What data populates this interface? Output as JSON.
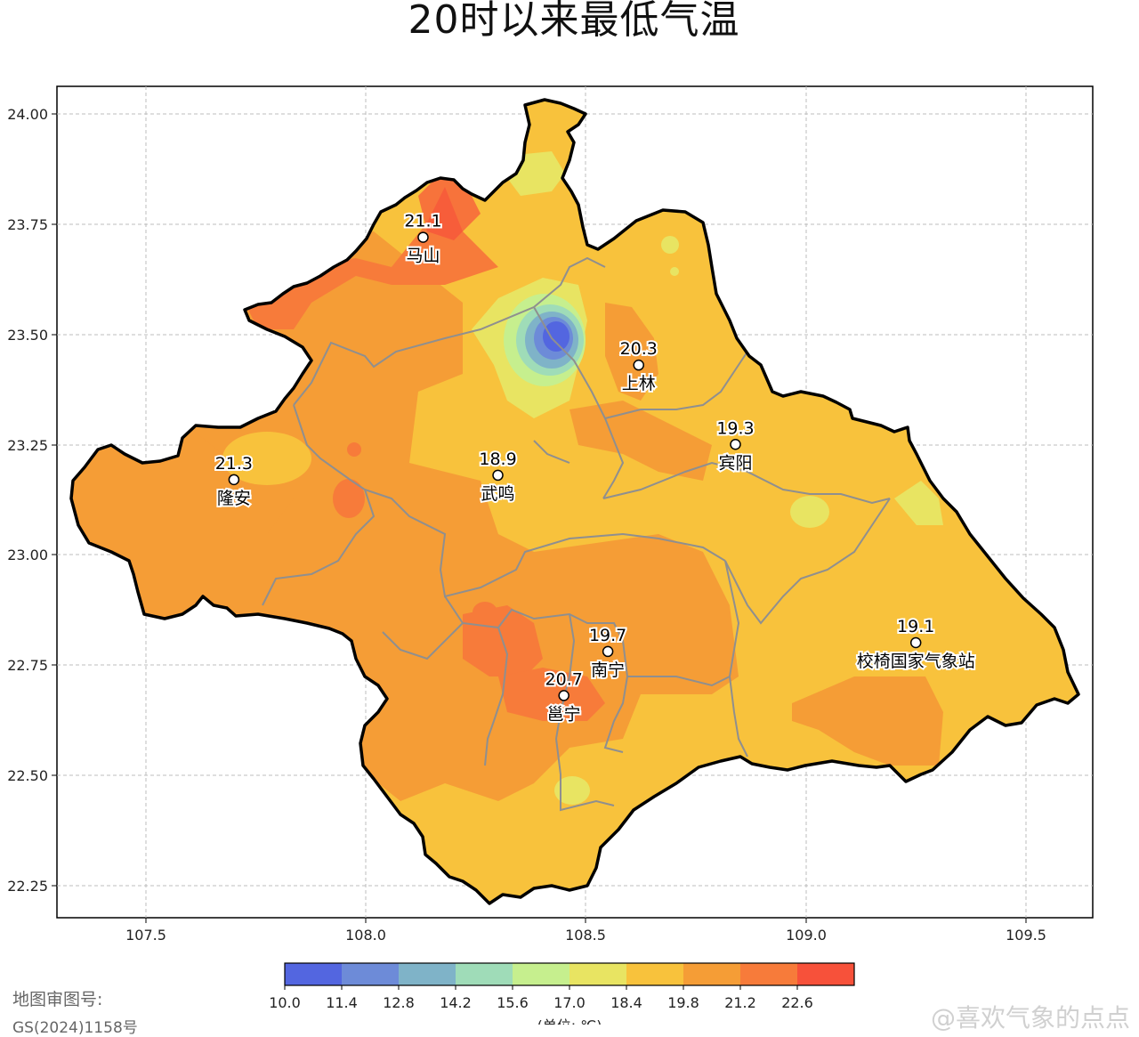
{
  "title": "20时以来最低气温",
  "axes": {
    "x_ticks": [
      "107.5",
      "108.0",
      "108.5",
      "109.0",
      "109.5"
    ],
    "y_ticks": [
      "24.00",
      "23.75",
      "23.50",
      "23.25",
      "23.00",
      "22.75",
      "22.50",
      "22.25"
    ]
  },
  "stations": [
    {
      "name": "马山",
      "value": "21.1",
      "lon": 108.13,
      "lat": 23.72
    },
    {
      "name": "上林",
      "value": "20.3",
      "lon": 108.62,
      "lat": 23.43
    },
    {
      "name": "隆安",
      "value": "21.3",
      "lon": 107.7,
      "lat": 23.17
    },
    {
      "name": "武鸣",
      "value": "18.9",
      "lon": 108.3,
      "lat": 23.18
    },
    {
      "name": "宾阳",
      "value": "19.3",
      "lon": 108.84,
      "lat": 23.25
    },
    {
      "name": "南宁",
      "value": "19.7",
      "lon": 108.55,
      "lat": 22.78
    },
    {
      "name": "邕宁",
      "value": "20.7",
      "lon": 108.45,
      "lat": 22.68
    },
    {
      "name": "校椅国家气象站",
      "value": "19.1",
      "lon": 109.25,
      "lat": 22.8
    }
  ],
  "colorbar": {
    "labels": [
      "10.0",
      "11.4",
      "12.8",
      "14.2",
      "15.6",
      "17.0",
      "18.4",
      "19.8",
      "21.2",
      "22.6"
    ],
    "colors": [
      "#5366e0",
      "#6d8bd8",
      "#7fb3c8",
      "#9fdcb8",
      "#c6ef8e",
      "#e8e462",
      "#f8c23c",
      "#f59d36",
      "#f77b3a",
      "#f7513a"
    ],
    "unit_label": "(单位: ℃)"
  },
  "footer": {
    "approval_line1": "地图审图号:",
    "approval_line2": "GS(2024)1158号",
    "watermark": "@喜欢气象的点点"
  }
}
